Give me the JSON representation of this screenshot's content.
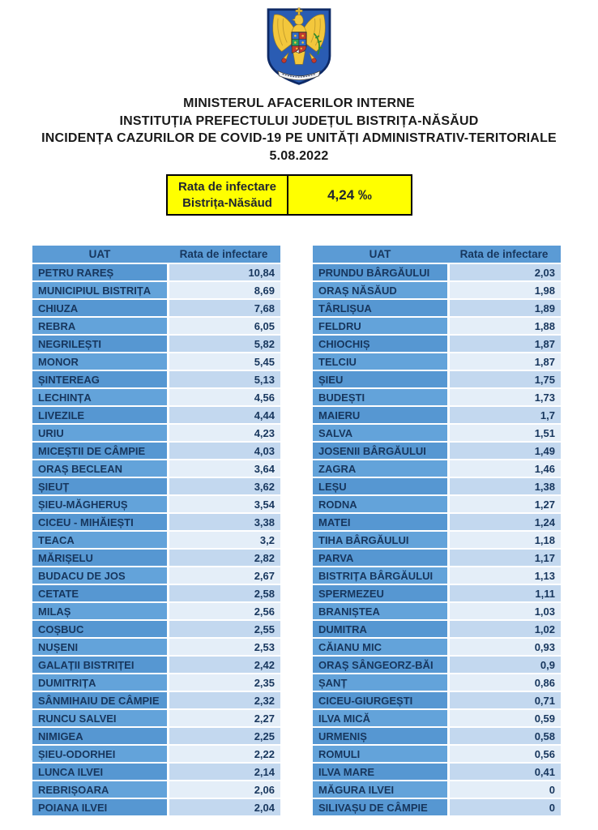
{
  "header": {
    "emblem_icon": "romania-mai-coat-of-arms",
    "lines": [
      "MINISTERUL AFACERILOR INTERNE",
      "INSTITUȚIA PREFECTULUI JUDEȚUL BISTRIȚA-NĂSĂUD",
      "INCIDENȚA CAZURILOR DE COVID-19 PE UNITĂȚI ADMINISTRATIV-TERITORIALE",
      "5.08.2022"
    ]
  },
  "summary_box": {
    "label_line1": "Rata de infectare",
    "label_line2": "Bistrița-Năsăud",
    "value": "4,24 ‰",
    "background": "#FFFF00"
  },
  "tables": {
    "columns": {
      "uat": "UAT",
      "rate": "Rata de infectare"
    },
    "left_rows": [
      {
        "uat": "PETRU RAREȘ",
        "rate": "10,84"
      },
      {
        "uat": "MUNICIPIUL BISTRIȚA",
        "rate": "8,69"
      },
      {
        "uat": "CHIUZA",
        "rate": "7,68"
      },
      {
        "uat": "REBRA",
        "rate": "6,05"
      },
      {
        "uat": "NEGRILEȘTI",
        "rate": "5,82"
      },
      {
        "uat": "MONOR",
        "rate": "5,45"
      },
      {
        "uat": "ȘINTEREAG",
        "rate": "5,13"
      },
      {
        "uat": "LECHINȚA",
        "rate": "4,56"
      },
      {
        "uat": "LIVEZILE",
        "rate": "4,44"
      },
      {
        "uat": "URIU",
        "rate": "4,23"
      },
      {
        "uat": "MICEȘTII DE CÂMPIE",
        "rate": "4,03"
      },
      {
        "uat": "ORAȘ BECLEAN",
        "rate": "3,64"
      },
      {
        "uat": "ȘIEUȚ",
        "rate": "3,62"
      },
      {
        "uat": "ȘIEU-MĂGHERUȘ",
        "rate": "3,54"
      },
      {
        "uat": "CICEU - MIHĂIEȘTI",
        "rate": "3,38"
      },
      {
        "uat": "TEACA",
        "rate": "3,2"
      },
      {
        "uat": "MĂRIȘELU",
        "rate": "2,82"
      },
      {
        "uat": "BUDACU DE JOS",
        "rate": "2,67"
      },
      {
        "uat": "CETATE",
        "rate": "2,58"
      },
      {
        "uat": "MILAȘ",
        "rate": "2,56"
      },
      {
        "uat": "COȘBUC",
        "rate": "2,55"
      },
      {
        "uat": "NUȘENI",
        "rate": "2,53"
      },
      {
        "uat": "GALAȚII BISTRIȚEI",
        "rate": "2,42"
      },
      {
        "uat": "DUMITRIȚA",
        "rate": "2,35"
      },
      {
        "uat": "SÂNMIHAIU DE CÂMPIE",
        "rate": "2,32"
      },
      {
        "uat": "RUNCU SALVEI",
        "rate": "2,27"
      },
      {
        "uat": "NIMIGEA",
        "rate": "2,25"
      },
      {
        "uat": "ȘIEU-ODORHEI",
        "rate": "2,22"
      },
      {
        "uat": "LUNCA ILVEI",
        "rate": "2,14"
      },
      {
        "uat": "REBRIȘOARA",
        "rate": "2,06"
      },
      {
        "uat": "POIANA ILVEI",
        "rate": "2,04"
      }
    ],
    "right_rows": [
      {
        "uat": "PRUNDU BÂRGĂULUI",
        "rate": "2,03"
      },
      {
        "uat": "ORAȘ NĂSĂUD",
        "rate": "1,98"
      },
      {
        "uat": "TÂRLIȘUA",
        "rate": "1,89"
      },
      {
        "uat": "FELDRU",
        "rate": "1,88"
      },
      {
        "uat": "CHIOCHIȘ",
        "rate": "1,87"
      },
      {
        "uat": "TELCIU",
        "rate": "1,87"
      },
      {
        "uat": "ȘIEU",
        "rate": "1,75"
      },
      {
        "uat": "BUDEȘTI",
        "rate": "1,73"
      },
      {
        "uat": "MAIERU",
        "rate": "1,7"
      },
      {
        "uat": "SALVA",
        "rate": "1,51"
      },
      {
        "uat": "JOSENII BÂRGĂULUI",
        "rate": "1,49"
      },
      {
        "uat": "ZAGRA",
        "rate": "1,46"
      },
      {
        "uat": "LEȘU",
        "rate": "1,38"
      },
      {
        "uat": "RODNA",
        "rate": "1,27"
      },
      {
        "uat": "MATEI",
        "rate": "1,24"
      },
      {
        "uat": "TIHA BÂRGĂULUI",
        "rate": "1,18"
      },
      {
        "uat": "PARVA",
        "rate": "1,17"
      },
      {
        "uat": "BISTRIȚA BÂRGĂULUI",
        "rate": "1,13"
      },
      {
        "uat": "SPERMEZEU",
        "rate": "1,11"
      },
      {
        "uat": "BRANIȘTEA",
        "rate": "1,03"
      },
      {
        "uat": "DUMITRA",
        "rate": "1,02"
      },
      {
        "uat": "CĂIANU MIC",
        "rate": "0,93"
      },
      {
        "uat": "ORAȘ SÂNGEORZ-BĂI",
        "rate": "0,9"
      },
      {
        "uat": "ȘANȚ",
        "rate": "0,86"
      },
      {
        "uat": "CICEU-GIURGEȘTI",
        "rate": "0,71"
      },
      {
        "uat": "ILVA MICĂ",
        "rate": "0,59"
      },
      {
        "uat": "URMENIȘ",
        "rate": "0,58"
      },
      {
        "uat": "ROMULI",
        "rate": "0,56"
      },
      {
        "uat": "ILVA MARE",
        "rate": "0,41"
      },
      {
        "uat": "MĂGURA ILVEI",
        "rate": "0"
      },
      {
        "uat": "SILIVAȘU DE CÂMPIE",
        "rate": "0"
      }
    ]
  },
  "colors": {
    "header_cell_bg": "#5B9BD5",
    "name_cell_bg_odd": "#5697D2",
    "name_cell_bg_even": "#63A3DA",
    "rate_cell_bg_odd": "#C3D8EF",
    "rate_cell_bg_even": "#E4EEF8",
    "table_text": "#17365D",
    "summary_bg": "#FFFF00",
    "title_text": "#1a1a1a"
  }
}
